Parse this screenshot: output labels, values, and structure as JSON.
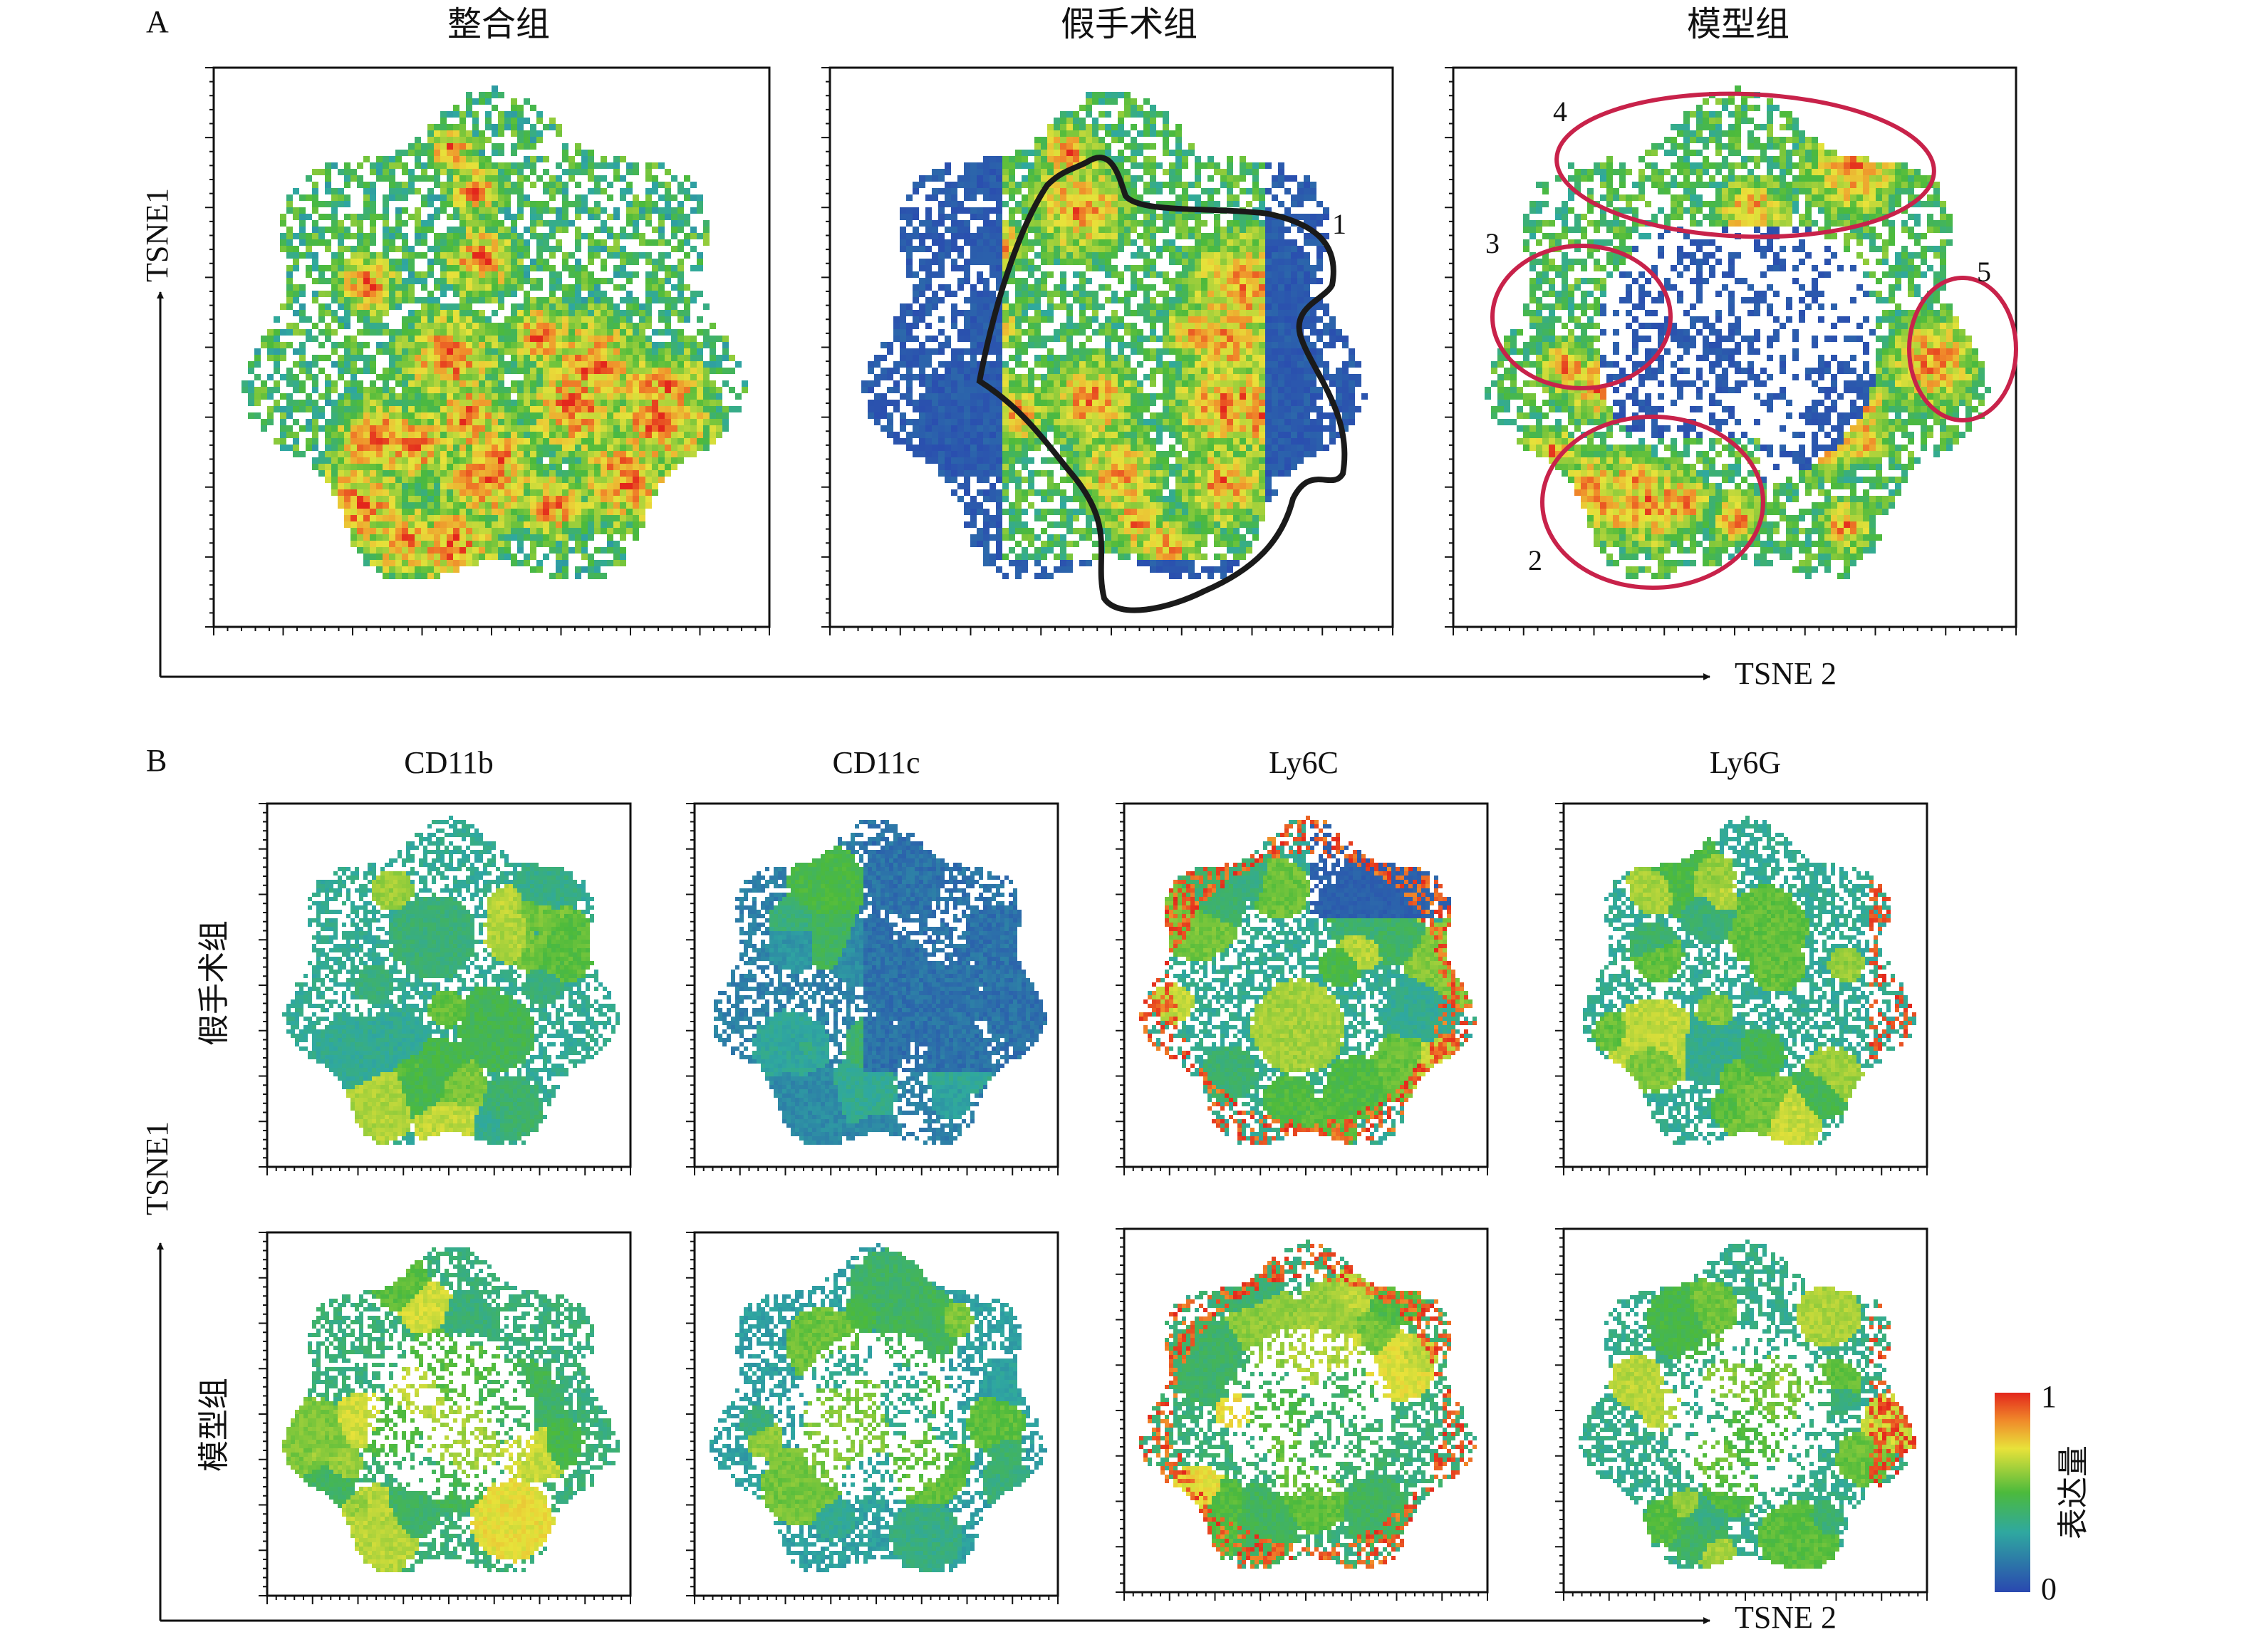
{
  "panel_a": {
    "letter": "A",
    "titles": [
      "整合组",
      "假手术组",
      "模型组"
    ],
    "y_axis_label": "TSNE1",
    "x_axis_label": "TSNE 2",
    "sham_annotation": "1",
    "model_cluster_labels": [
      "4",
      "3",
      "5",
      "2"
    ]
  },
  "panel_b": {
    "letter": "B",
    "marker_titles": [
      "CD11b",
      "CD11c",
      "Ly6C",
      "Ly6G"
    ],
    "row_labels": [
      "假手术组",
      "模型组"
    ],
    "y_axis_label": "TSNE1",
    "x_axis_label": "TSNE 2",
    "colorbar": {
      "label": "表达量",
      "max_label": "1",
      "min_label": "0"
    }
  },
  "colors": {
    "low": "#2a48b0",
    "mid": "#4cba3c",
    "high": "#e3261c",
    "sham_outline": "#1a1a1a",
    "cluster_outline": "#c8224a"
  },
  "chart_data": [
    {
      "type": "scatter",
      "panel": "A",
      "title": "整合组",
      "xlabel": "TSNE 2",
      "ylabel": "TSNE1",
      "coloring": "density"
    },
    {
      "type": "scatter",
      "panel": "A",
      "title": "假手术组",
      "xlabel": "TSNE 2",
      "ylabel": "TSNE1",
      "coloring": "density"
    },
    {
      "type": "scatter",
      "panel": "A",
      "title": "模型组",
      "xlabel": "TSNE 2",
      "ylabel": "TSNE1",
      "coloring": "density"
    },
    {
      "type": "heatmap",
      "panel": "B",
      "series": [
        {
          "row": "假手术组",
          "marker": "CD11b"
        },
        {
          "row": "假手术组",
          "marker": "CD11c"
        },
        {
          "row": "假手术组",
          "marker": "Ly6C"
        },
        {
          "row": "假手术组",
          "marker": "Ly6G"
        },
        {
          "row": "模型组",
          "marker": "CD11b"
        },
        {
          "row": "模型组",
          "marker": "CD11c"
        },
        {
          "row": "模型组",
          "marker": "Ly6C"
        },
        {
          "row": "模型组",
          "marker": "Ly6G"
        }
      ],
      "colorbar_range": [
        0,
        1
      ]
    }
  ]
}
